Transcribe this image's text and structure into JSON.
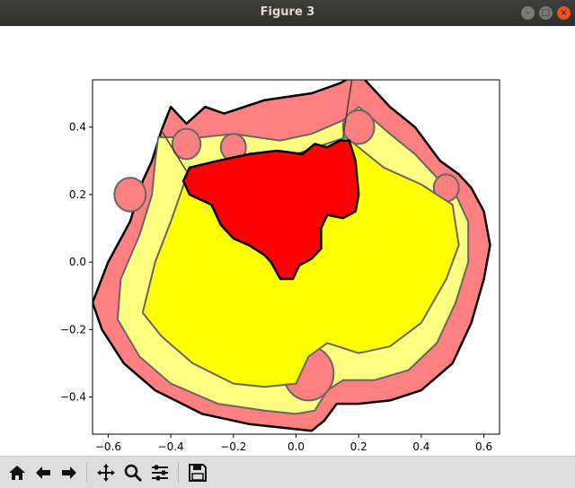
{
  "window": {
    "title": "Figure 3",
    "controls": [
      "minimize",
      "maximize",
      "close"
    ]
  },
  "toolbar": {
    "buttons": [
      {
        "name": "home",
        "icon": "home-icon"
      },
      {
        "name": "back",
        "icon": "arrow-left-icon"
      },
      {
        "name": "forward",
        "icon": "arrow-right-icon"
      },
      {
        "name": "pan",
        "icon": "move-arrows-icon"
      },
      {
        "name": "zoom",
        "icon": "magnifier-icon"
      },
      {
        "name": "configure-subplots",
        "icon": "sliders-icon"
      },
      {
        "name": "save",
        "icon": "floppy-disk-icon"
      }
    ]
  },
  "chart_data": {
    "type": "area",
    "title": "",
    "xlabel": "",
    "ylabel": "",
    "xlim": [
      -0.65,
      0.65
    ],
    "ylim": [
      -0.51,
      0.54
    ],
    "xticks": [
      -0.6,
      -0.4,
      -0.2,
      0.0,
      0.2,
      0.4,
      0.6
    ],
    "xtick_labels": [
      "−0.6",
      "−0.4",
      "−0.2",
      "0.0",
      "0.2",
      "0.4",
      "0.6"
    ],
    "yticks": [
      -0.4,
      -0.2,
      0.0,
      0.2,
      0.4
    ],
    "ytick_labels": [
      "−0.4",
      "−0.2",
      "0.0",
      "0.2",
      "0.4"
    ],
    "grid": false,
    "regions": [
      {
        "kind": "outer-boundary",
        "color": "#ff8080",
        "points": [
          [
            -0.43,
            0.39
          ],
          [
            -0.4,
            0.46
          ],
          [
            -0.35,
            0.41
          ],
          [
            -0.29,
            0.46
          ],
          [
            -0.23,
            0.44
          ],
          [
            -0.1,
            0.48
          ],
          [
            0.05,
            0.5
          ],
          [
            0.14,
            0.53
          ],
          [
            0.2,
            0.56
          ],
          [
            0.3,
            0.46
          ],
          [
            0.38,
            0.4
          ],
          [
            0.46,
            0.3
          ],
          [
            0.52,
            0.26
          ],
          [
            0.56,
            0.22
          ],
          [
            0.6,
            0.15
          ],
          [
            0.62,
            0.05
          ],
          [
            0.6,
            -0.05
          ],
          [
            0.56,
            -0.18
          ],
          [
            0.5,
            -0.3
          ],
          [
            0.4,
            -0.38
          ],
          [
            0.3,
            -0.41
          ],
          [
            0.2,
            -0.42
          ],
          [
            0.13,
            -0.42
          ],
          [
            0.09,
            -0.47
          ],
          [
            0.05,
            -0.5
          ],
          [
            -0.05,
            -0.49
          ],
          [
            -0.15,
            -0.48
          ],
          [
            -0.3,
            -0.45
          ],
          [
            -0.45,
            -0.38
          ],
          [
            -0.55,
            -0.3
          ],
          [
            -0.62,
            -0.2
          ],
          [
            -0.65,
            -0.12
          ],
          [
            -0.6,
            0.0
          ],
          [
            -0.53,
            0.12
          ],
          [
            -0.49,
            0.24
          ],
          [
            -0.46,
            0.3
          ]
        ]
      },
      {
        "kind": "band",
        "color": "#ffff80",
        "points": [
          [
            -0.44,
            0.37
          ],
          [
            -0.38,
            0.37
          ],
          [
            -0.3,
            0.37
          ],
          [
            -0.2,
            0.38
          ],
          [
            -0.05,
            0.36
          ],
          [
            0.05,
            0.38
          ],
          [
            0.15,
            0.42
          ],
          [
            0.2,
            0.46
          ],
          [
            0.3,
            0.38
          ],
          [
            0.38,
            0.32
          ],
          [
            0.45,
            0.25
          ],
          [
            0.51,
            0.2
          ],
          [
            0.55,
            0.12
          ],
          [
            0.55,
            0.0
          ],
          [
            0.51,
            -0.12
          ],
          [
            0.45,
            -0.24
          ],
          [
            0.36,
            -0.32
          ],
          [
            0.25,
            -0.35
          ],
          [
            0.15,
            -0.35
          ],
          [
            0.1,
            -0.38
          ],
          [
            0.06,
            -0.44
          ],
          [
            0.0,
            -0.45
          ],
          [
            -0.1,
            -0.44
          ],
          [
            -0.25,
            -0.42
          ],
          [
            -0.4,
            -0.36
          ],
          [
            -0.5,
            -0.28
          ],
          [
            -0.57,
            -0.17
          ],
          [
            -0.56,
            -0.05
          ],
          [
            -0.5,
            0.08
          ],
          [
            -0.46,
            0.2
          ],
          [
            -0.45,
            0.3
          ]
        ]
      },
      {
        "kind": "inner-core",
        "color": "#ffff00",
        "points": [
          [
            -0.34,
            0.28
          ],
          [
            -0.2,
            0.27
          ],
          [
            0.0,
            0.32
          ],
          [
            0.16,
            0.37
          ],
          [
            0.28,
            0.28
          ],
          [
            0.4,
            0.23
          ],
          [
            0.5,
            0.17
          ],
          [
            0.52,
            0.05
          ],
          [
            0.48,
            -0.05
          ],
          [
            0.4,
            -0.18
          ],
          [
            0.3,
            -0.25
          ],
          [
            0.2,
            -0.27
          ],
          [
            0.1,
            -0.24
          ],
          [
            0.04,
            -0.28
          ],
          [
            0.0,
            -0.36
          ],
          [
            -0.1,
            -0.37
          ],
          [
            -0.2,
            -0.36
          ],
          [
            -0.33,
            -0.3
          ],
          [
            -0.43,
            -0.22
          ],
          [
            -0.49,
            -0.15
          ],
          [
            -0.45,
            0.0
          ],
          [
            -0.4,
            0.12
          ],
          [
            -0.37,
            0.2
          ]
        ]
      },
      {
        "kind": "highlight",
        "color": "#ff0000",
        "points": [
          [
            -0.34,
            0.28
          ],
          [
            -0.25,
            0.3
          ],
          [
            -0.15,
            0.32
          ],
          [
            -0.06,
            0.33
          ],
          [
            0.02,
            0.32
          ],
          [
            0.06,
            0.35
          ],
          [
            0.1,
            0.34
          ],
          [
            0.14,
            0.36
          ],
          [
            0.17,
            0.36
          ],
          [
            0.19,
            0.3
          ],
          [
            0.2,
            0.2
          ],
          [
            0.19,
            0.15
          ],
          [
            0.15,
            0.13
          ],
          [
            0.1,
            0.14
          ],
          [
            0.08,
            0.1
          ],
          [
            0.08,
            0.04
          ],
          [
            0.05,
            0.01
          ],
          [
            0.01,
            -0.01
          ],
          [
            -0.01,
            -0.05
          ],
          [
            -0.05,
            -0.05
          ],
          [
            -0.08,
            0.0
          ],
          [
            -0.1,
            0.02
          ],
          [
            -0.15,
            0.05
          ],
          [
            -0.2,
            0.07
          ],
          [
            -0.24,
            0.11
          ],
          [
            -0.27,
            0.17
          ],
          [
            -0.34,
            0.2
          ],
          [
            -0.36,
            0.24
          ]
        ]
      }
    ],
    "blobs": [
      {
        "center": [
          -0.35,
          0.35
        ],
        "r": 0.045,
        "color": "#ff8080"
      },
      {
        "center": [
          -0.2,
          0.34
        ],
        "r": 0.04,
        "color": "#ff8080"
      },
      {
        "center": [
          -0.25,
          0.22
        ],
        "r": 0.045,
        "color": "#ff8080"
      },
      {
        "center": [
          -0.53,
          0.2
        ],
        "r": 0.05,
        "color": "#ff8080"
      },
      {
        "center": [
          0.04,
          -0.33
        ],
        "r": 0.08,
        "color": "#ff8080"
      },
      {
        "center": [
          0.48,
          0.22
        ],
        "r": 0.04,
        "color": "#ff8080"
      },
      {
        "center": [
          0.2,
          0.4
        ],
        "r": 0.05,
        "color": "#ff8080"
      }
    ],
    "lines": [
      {
        "points": [
          [
            -0.43,
            0.39
          ],
          [
            -0.35,
            0.27
          ]
        ],
        "color": "#404040"
      },
      {
        "points": [
          [
            0.18,
            0.55
          ],
          [
            0.15,
            0.37
          ]
        ],
        "color": "#404040"
      }
    ]
  }
}
